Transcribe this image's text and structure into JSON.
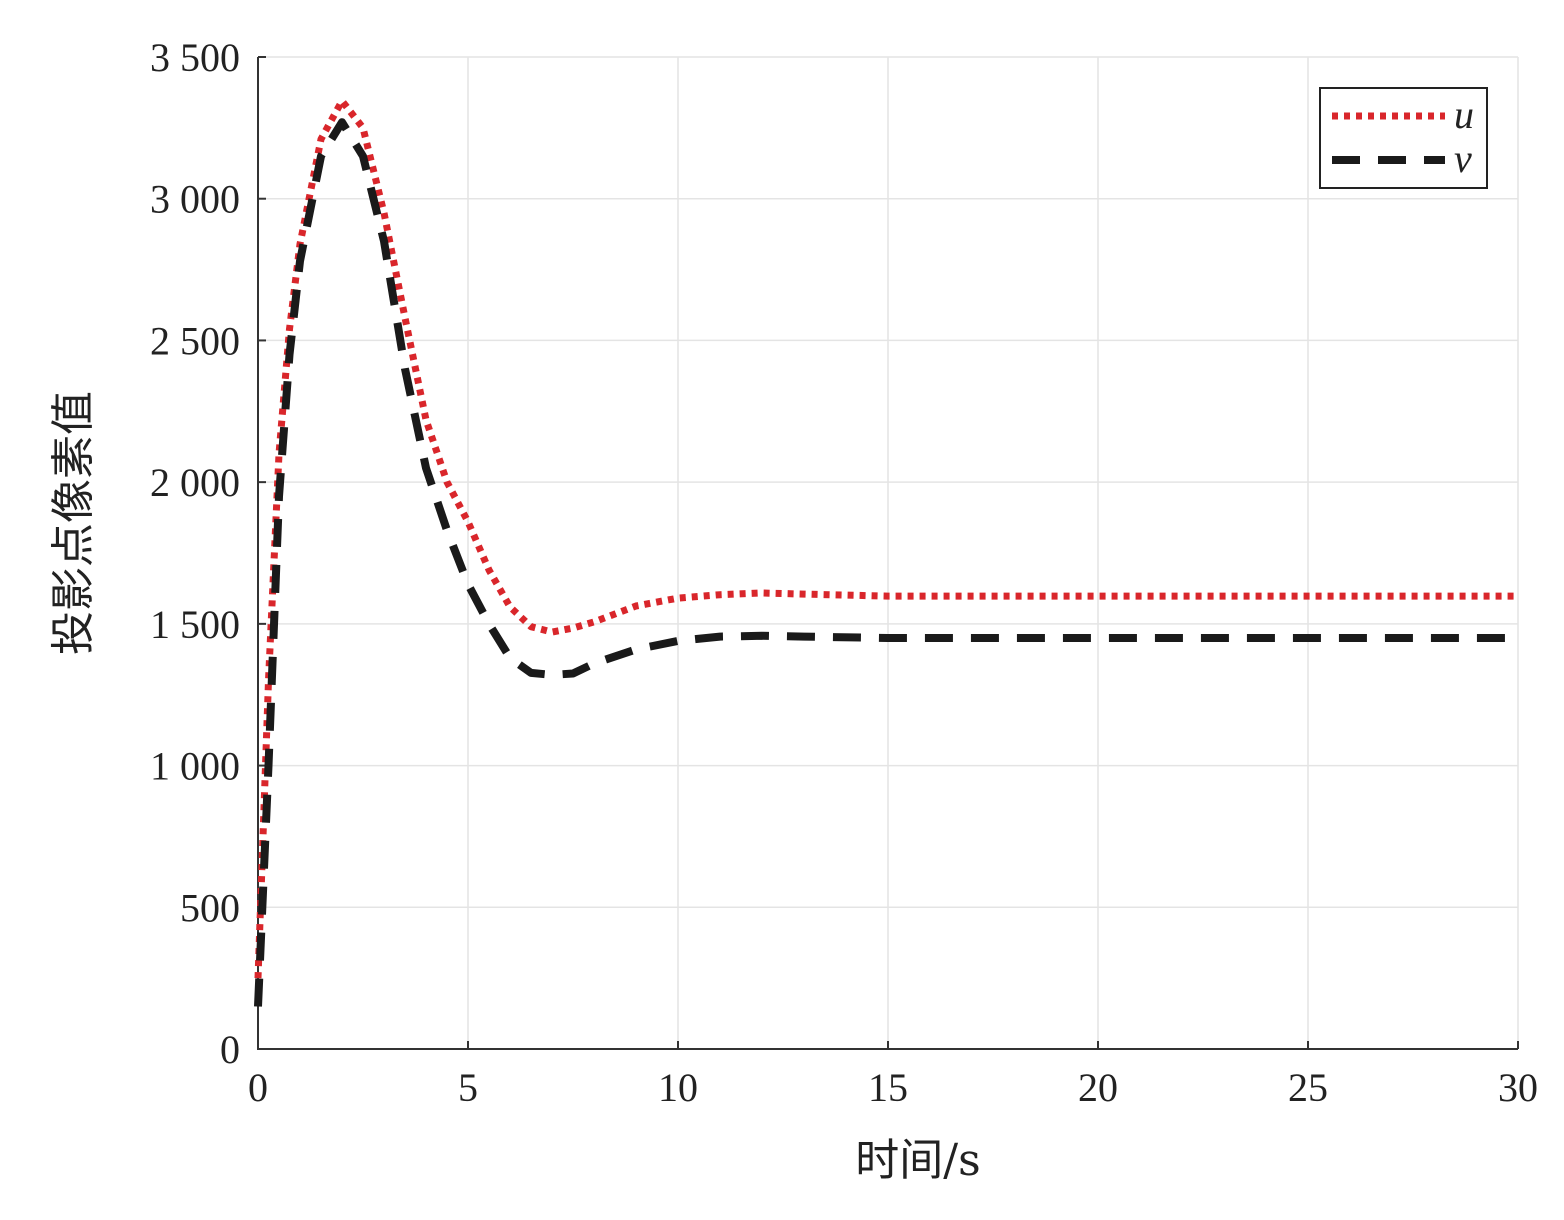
{
  "chart_data": {
    "type": "line",
    "x_label": "时间/s",
    "y_label": "投影点像素值",
    "xlim": [
      0,
      30
    ],
    "xticks": [
      0,
      5,
      10,
      15,
      20,
      25,
      30
    ],
    "ylim": [
      0,
      3500
    ],
    "yticks": [
      0,
      500,
      {
        "value": 1000,
        "label": "1 000"
      },
      {
        "value": 1500,
        "label": "1 500"
      },
      {
        "value": 2000,
        "label": "2 000"
      },
      {
        "value": 2500,
        "label": "2 500"
      },
      {
        "value": 3000,
        "label": "3 000"
      },
      {
        "value": 3500,
        "label": "3 500"
      }
    ],
    "grid": true,
    "legend": "upper right",
    "x": [
      0,
      0.25,
      0.5,
      0.75,
      1,
      1.5,
      2,
      2.5,
      3,
      3.5,
      4,
      4.5,
      5,
      5.5,
      6,
      6.5,
      7,
      7.5,
      8,
      9,
      10,
      11,
      12,
      13,
      15,
      20,
      25,
      30
    ],
    "series": [
      {
        "name": "u",
        "color": "#d9262b",
        "dash": "dotted",
        "values": [
          250,
          1300,
          2100,
          2540,
          2840,
          3210,
          3345,
          3250,
          2950,
          2580,
          2220,
          2000,
          1860,
          1690,
          1560,
          1490,
          1471,
          1485,
          1507,
          1563,
          1591,
          1603,
          1609,
          1605,
          1598,
          1598,
          1598,
          1598
        ]
      },
      {
        "name": "v",
        "color": "#1a1a1a",
        "dash": "dashed",
        "values": [
          150,
          1000,
          1950,
          2450,
          2780,
          3150,
          3270,
          3150,
          2850,
          2400,
          2050,
          1830,
          1640,
          1500,
          1380,
          1327,
          1320,
          1325,
          1360,
          1410,
          1440,
          1455,
          1458,
          1455,
          1450,
          1450,
          1450,
          1450
        ]
      }
    ]
  }
}
